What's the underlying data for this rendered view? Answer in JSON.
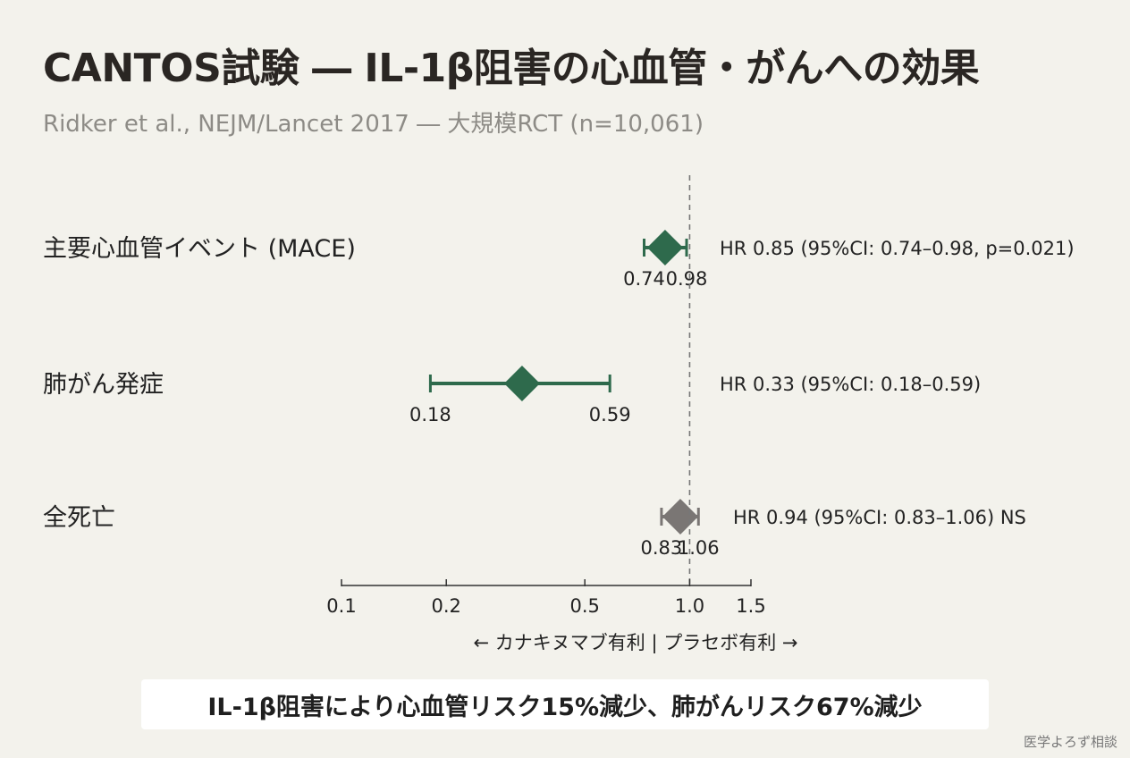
{
  "title": "CANTOS試験 ― IL-1β阻害の心血管・がんへの効果",
  "subtitle": "Ridker et al., NEJM/Lancet 2017 ― 大規模RCT (n=10,061)",
  "conclusion": "IL-1β阻害により心血管リスク15%減少、肺がんリスク67%減少",
  "footer": "医学よろず相談",
  "colors": {
    "favorable": "#2e6a4c",
    "neutral": "#7a7674",
    "reference": "#777777"
  },
  "chart_data": {
    "type": "forest",
    "x_scale": "log",
    "xlim": [
      0.1,
      1.5
    ],
    "ticks": [
      0.1,
      0.2,
      0.5,
      1.0,
      1.5
    ],
    "tick_labels": [
      "0.1",
      "0.2",
      "0.5",
      "1.0",
      "1.5"
    ],
    "reference_line": 1.0,
    "axis_caption": "← カナキヌマブ有利 | プラセボ有利 →",
    "rows": [
      {
        "label": "主要心血管イベント (MACE)",
        "hr": 0.85,
        "ci_low": 0.74,
        "ci_high": 0.98,
        "ci_low_label": "0.74",
        "ci_high_label": "0.98",
        "text": "HR 0.85 (95%CI: 0.74–0.98, p=0.021)",
        "significant": true
      },
      {
        "label": "肺がん発症",
        "hr": 0.33,
        "ci_low": 0.18,
        "ci_high": 0.59,
        "ci_low_label": "0.18",
        "ci_high_label": "0.59",
        "text": "HR 0.33 (95%CI: 0.18–0.59)",
        "significant": true
      },
      {
        "label": "全死亡",
        "hr": 0.94,
        "ci_low": 0.83,
        "ci_high": 1.06,
        "ci_low_label": "0.83",
        "ci_high_label": "1.06",
        "text": "HR 0.94 (95%CI: 0.83–1.06) NS",
        "significant": false
      }
    ]
  }
}
